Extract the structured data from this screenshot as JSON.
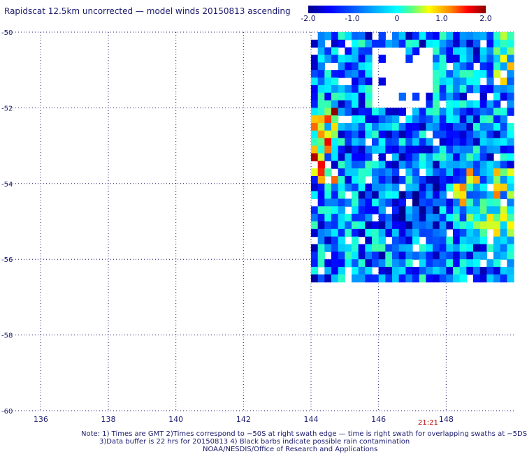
{
  "title": "Rapidscat 12.5km uncorrected — model winds 20150813 ascending",
  "colorbar": {
    "labels": [
      "-2.0",
      "-1.0",
      "0",
      "1.0",
      "2.0"
    ],
    "stops": [
      "#00008b",
      "#0000ff",
      "#0055ff",
      "#00aaff",
      "#00ffff",
      "#55ff88",
      "#ffff00",
      "#ff8800",
      "#ff0000",
      "#8b0000"
    ]
  },
  "chart_data": {
    "type": "heatmap",
    "xlim": [
      135,
      150
    ],
    "ylim": [
      -60,
      -50
    ],
    "x_ticks": [
      136,
      138,
      140,
      142,
      144,
      146,
      148
    ],
    "x_tick_labels": [
      "136",
      "138",
      "140",
      "142",
      "144",
      "146",
      "148"
    ],
    "y_ticks": [
      -50,
      -52,
      -54,
      -56,
      -58,
      -60
    ],
    "y_tick_labels": [
      "-50",
      "-52",
      "-54",
      "-56",
      "-58",
      "-60"
    ],
    "grid": true,
    "value_range": [
      -2.0,
      2.0
    ],
    "swath": {
      "lon_min": 144.0,
      "lon_max": 150.0,
      "lat_min": -56.6,
      "lat_max": -50.0
    },
    "cell_size_deg": 0.2
  },
  "timestamp": "21:21",
  "notes": [
    "Note: 1) Times are GMT 2)Times correspond to −50S at right swath edge — time is right swath for overlapping swaths at −5DS",
    "3)Data buffer is 22 hrs for 20150813 4) Black barbs indicate possible rain contamination",
    "NOAA/NESDIS/Office of Research and Applications"
  ]
}
